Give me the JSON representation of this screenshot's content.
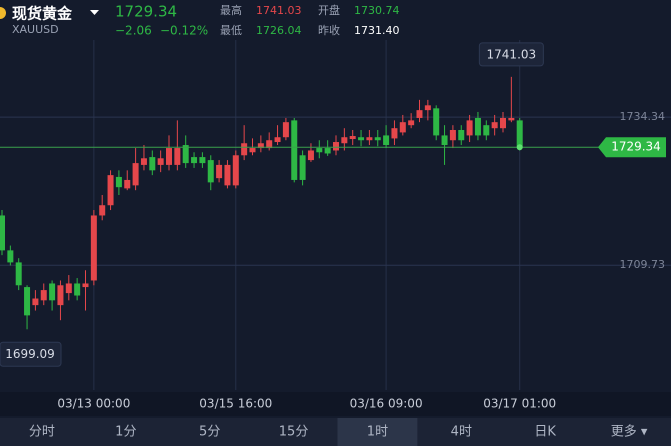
{
  "header": {
    "name": "现货黄金",
    "symbol": "XAUUSD",
    "price": "1729.34",
    "change": "−2.06",
    "change_pct": "−0.12%",
    "stats": [
      {
        "label": "最高",
        "value": "1741.03"
      },
      {
        "label": "开盘",
        "value": "1730.74"
      },
      {
        "label": "最低",
        "value": "1726.04"
      },
      {
        "label": "昨收",
        "value": "1731.40"
      }
    ]
  },
  "chart_data": {
    "type": "candlestick",
    "up_color": "#e5474b",
    "down_color": "#2eb845",
    "grid": true,
    "ylim": [
      1689,
      1753.8
    ],
    "yticks": [
      1709.73,
      1734.34
    ],
    "categories": [
      null,
      null,
      null,
      null,
      null,
      null,
      null,
      null,
      null,
      null,
      null,
      "03/13 00:00",
      null,
      null,
      null,
      null,
      null,
      null,
      null,
      null,
      null,
      null,
      null,
      null,
      null,
      null,
      null,
      null,
      "03/15 16:00",
      null,
      null,
      null,
      null,
      null,
      null,
      null,
      null,
      null,
      null,
      null,
      null,
      null,
      null,
      null,
      null,
      null,
      "03/16 09:00",
      null,
      null,
      null,
      null,
      null,
      null,
      null,
      null,
      null,
      null,
      null,
      null,
      null,
      null,
      null,
      "03/17 01:00"
    ],
    "open": [
      1718.0,
      1712.2,
      1710.2,
      1706.1,
      1703.1,
      1703.9,
      1706.7,
      1703.1,
      1705.1,
      1706.7,
      1706.1,
      1707.2,
      1718.0,
      1719.7,
      1724.4,
      1722.5,
      1723.0,
      1726.4,
      1727.7,
      1726.4,
      1726.4,
      1726.4,
      1729.7,
      1727.7,
      1727.7,
      1727.2,
      1724.2,
      1723.0,
      1723.0,
      1728.0,
      1728.5,
      1729.2,
      1729.2,
      1730.2,
      1731.0,
      1733.8,
      1728.0,
      1727.2,
      1729.2,
      1729.2,
      1728.8,
      1730.0,
      1730.7,
      1731.0,
      1730.5,
      1731.0,
      1731.3,
      1730.8,
      1731.8,
      1733.0,
      1734.2,
      1735.5,
      1735.8,
      1731.3,
      1730.5,
      1732.2,
      1731.3,
      1734.2,
      1733.0,
      1732.5,
      1732.5,
      1733.8,
      1733.8
    ],
    "high": [
      1718.9,
      1713.0,
      1710.9,
      1706.4,
      1705.6,
      1706.7,
      1707.2,
      1707.2,
      1708.1,
      1707.6,
      1708.9,
      1718.9,
      1721.4,
      1725.5,
      1725.5,
      1725.5,
      1729.2,
      1729.7,
      1728.8,
      1728.8,
      1731.3,
      1733.8,
      1731.3,
      1728.5,
      1728.5,
      1728.0,
      1727.2,
      1727.2,
      1728.8,
      1733.0,
      1730.8,
      1731.3,
      1731.8,
      1733.0,
      1734.2,
      1734.2,
      1728.8,
      1730.0,
      1730.5,
      1730.5,
      1731.3,
      1732.5,
      1732.2,
      1732.2,
      1732.2,
      1732.2,
      1733.0,
      1733.8,
      1734.7,
      1735.0,
      1737.2,
      1737.2,
      1736.3,
      1733.0,
      1733.0,
      1733.0,
      1734.7,
      1735.2,
      1733.8,
      1734.7,
      1735.2,
      1741.03,
      1734.2
    ],
    "low": [
      1711.4,
      1709.7,
      1705.6,
      1699.09,
      1702.2,
      1703.1,
      1702.2,
      1700.6,
      1703.9,
      1703.9,
      1702.2,
      1706.4,
      1717.2,
      1718.9,
      1721.4,
      1722.2,
      1722.2,
      1725.5,
      1724.7,
      1725.2,
      1725.5,
      1725.5,
      1725.9,
      1725.9,
      1725.9,
      1722.2,
      1723.5,
      1722.5,
      1722.5,
      1727.2,
      1728.0,
      1728.5,
      1728.8,
      1729.7,
      1730.5,
      1723.5,
      1723.0,
      1726.9,
      1727.5,
      1727.9,
      1728.0,
      1728.8,
      1729.7,
      1729.5,
      1729.7,
      1729.5,
      1729.2,
      1729.7,
      1731.3,
      1732.5,
      1733.5,
      1733.8,
      1730.5,
      1726.4,
      1729.2,
      1729.7,
      1730.2,
      1730.5,
      1730.5,
      1731.3,
      1731.8,
      1733.5,
      1728.8
    ],
    "close": [
      1712.2,
      1710.2,
      1706.4,
      1701.4,
      1704.2,
      1705.6,
      1703.9,
      1706.4,
      1706.7,
      1704.7,
      1706.7,
      1718.0,
      1719.7,
      1724.7,
      1722.7,
      1723.9,
      1726.7,
      1727.5,
      1725.5,
      1727.5,
      1729.2,
      1729.2,
      1726.7,
      1726.7,
      1726.7,
      1723.5,
      1726.4,
      1726.4,
      1728.0,
      1730.0,
      1729.2,
      1730.0,
      1730.5,
      1731.0,
      1733.5,
      1723.9,
      1723.9,
      1728.8,
      1728.5,
      1728.3,
      1730.2,
      1731.0,
      1731.2,
      1730.5,
      1731.0,
      1730.5,
      1729.7,
      1732.5,
      1733.5,
      1733.8,
      1735.5,
      1736.3,
      1731.3,
      1729.7,
      1732.2,
      1730.5,
      1733.8,
      1731.3,
      1731.3,
      1733.5,
      1734.2,
      1734.2,
      1729.34
    ]
  },
  "tabs": [
    "分时",
    "1分",
    "5分",
    "15分",
    "1时",
    "4时",
    "日K",
    "更多 ▾"
  ],
  "selected_tab": 4
}
